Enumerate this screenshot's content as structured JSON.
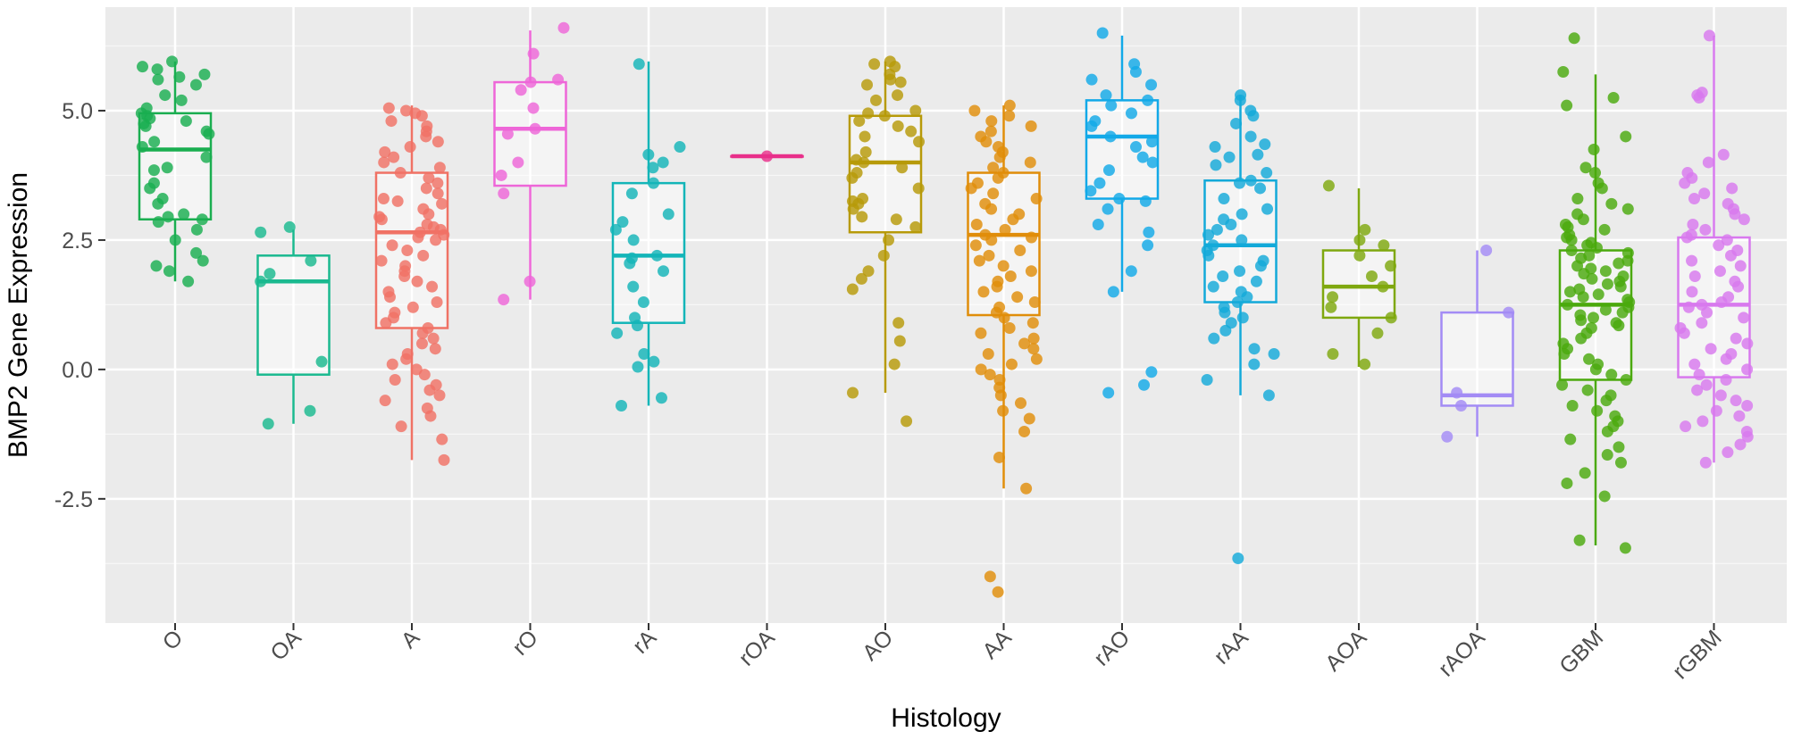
{
  "chart_data": {
    "type": "boxplot",
    "title": "",
    "xlabel": "Histology",
    "ylabel": "BMP2 Gene Expression",
    "ylim": [
      -4.9,
      7.0
    ],
    "yticks": [
      -2.5,
      0.0,
      2.5,
      5.0
    ],
    "ytick_labels": [
      "-2.5",
      "0.0",
      "2.5",
      "5.0"
    ],
    "grid": true,
    "legend": "none",
    "categories": [
      "O",
      "OA",
      "A",
      "rO",
      "rA",
      "rOA",
      "AO",
      "AA",
      "rAO",
      "rAA",
      "AOA",
      "rAOA",
      "GBM",
      "rGBM"
    ],
    "colors": [
      "#1aae50",
      "#1ab98f",
      "#f07265",
      "#ee66d8",
      "#13b5b8",
      "#e82f8a",
      "#b79a09",
      "#e08d0a",
      "#12a9e8",
      "#13a9d9",
      "#7fa80f",
      "#a38bf5",
      "#4ba90d",
      "#d879ee"
    ],
    "boxes": [
      {
        "name": "O",
        "min": 1.7,
        "q1": 2.9,
        "median": 4.25,
        "q3": 4.95,
        "max": 5.95,
        "points": [
          5.95,
          5.85,
          5.8,
          5.7,
          5.65,
          5.6,
          5.5,
          5.3,
          5.2,
          5.05,
          4.95,
          4.9,
          4.85,
          4.8,
          4.75,
          4.7,
          4.6,
          4.55,
          4.4,
          4.3,
          4.1,
          3.9,
          3.85,
          3.6,
          3.5,
          3.3,
          3.2,
          3.0,
          2.95,
          2.9,
          2.85,
          2.7,
          2.5,
          2.25,
          2.1,
          2.0,
          1.9,
          1.7
        ]
      },
      {
        "name": "OA",
        "min": -1.05,
        "q1": -0.1,
        "median": 1.7,
        "q3": 2.2,
        "max": 2.7,
        "points": [
          2.75,
          2.65,
          2.1,
          1.85,
          1.7,
          0.15,
          -0.8,
          -1.05
        ]
      },
      {
        "name": "A",
        "min": -1.75,
        "q1": 0.8,
        "median": 2.65,
        "q3": 3.8,
        "max": 5.1,
        "points": [
          5.05,
          5.0,
          4.95,
          4.9,
          4.8,
          4.7,
          4.6,
          4.5,
          4.4,
          4.3,
          4.2,
          4.1,
          4.0,
          3.9,
          3.8,
          3.7,
          3.6,
          3.5,
          3.4,
          3.3,
          3.25,
          3.2,
          3.1,
          3.0,
          2.95,
          2.9,
          2.8,
          2.75,
          2.7,
          2.65,
          2.6,
          2.55,
          2.5,
          2.4,
          2.3,
          2.2,
          2.1,
          2.0,
          1.9,
          1.8,
          1.7,
          1.6,
          1.5,
          1.4,
          1.3,
          1.2,
          1.1,
          1.0,
          0.9,
          0.8,
          0.7,
          0.6,
          0.5,
          0.4,
          0.3,
          0.2,
          0.1,
          0.0,
          -0.1,
          -0.2,
          -0.3,
          -0.4,
          -0.5,
          -0.6,
          -0.75,
          -0.9,
          -1.1,
          -1.35,
          -1.75
        ]
      },
      {
        "name": "rO",
        "min": 1.35,
        "q1": 3.55,
        "median": 4.65,
        "q3": 5.55,
        "max": 6.55,
        "points": [
          6.6,
          6.1,
          5.6,
          5.55,
          5.4,
          5.05,
          4.65,
          4.55,
          4.0,
          3.75,
          3.4,
          1.7,
          1.35
        ]
      },
      {
        "name": "rA",
        "min": -0.7,
        "q1": 0.9,
        "median": 2.2,
        "q3": 3.6,
        "max": 5.95,
        "points": [
          5.9,
          4.3,
          4.15,
          4.0,
          3.9,
          3.6,
          3.4,
          3.0,
          2.85,
          2.7,
          2.5,
          2.2,
          2.15,
          2.05,
          1.9,
          1.6,
          1.3,
          1.0,
          0.85,
          0.7,
          0.3,
          0.15,
          0.05,
          -0.55,
          -0.7
        ]
      },
      {
        "name": "rOA",
        "min": 4.12,
        "q1": 4.12,
        "median": 4.12,
        "q3": 4.12,
        "max": 4.12,
        "points": [
          4.12
        ]
      },
      {
        "name": "AO",
        "min": -0.45,
        "q1": 2.65,
        "median": 4.0,
        "q3": 4.9,
        "max": 5.95,
        "points": [
          5.95,
          5.9,
          5.85,
          5.7,
          5.6,
          5.55,
          5.5,
          5.3,
          5.2,
          5.0,
          4.95,
          4.9,
          4.8,
          4.7,
          4.6,
          4.5,
          4.4,
          4.2,
          4.05,
          4.0,
          3.9,
          3.8,
          3.7,
          3.5,
          3.3,
          3.25,
          3.2,
          3.1,
          2.95,
          2.9,
          2.75,
          2.5,
          2.2,
          1.9,
          1.75,
          1.55,
          0.9,
          0.55,
          0.1,
          -0.45,
          -1.0
        ]
      },
      {
        "name": "AA",
        "min": -2.3,
        "q1": 1.05,
        "median": 2.6,
        "q3": 3.8,
        "max": 5.1,
        "points": [
          5.1,
          5.0,
          4.9,
          4.8,
          4.7,
          4.6,
          4.5,
          4.4,
          4.3,
          4.2,
          4.1,
          4.0,
          3.9,
          3.8,
          3.7,
          3.6,
          3.5,
          3.4,
          3.3,
          3.2,
          3.1,
          3.0,
          2.9,
          2.8,
          2.7,
          2.6,
          2.55,
          2.5,
          2.4,
          2.3,
          2.2,
          2.1,
          2.0,
          1.9,
          1.8,
          1.7,
          1.6,
          1.5,
          1.4,
          1.3,
          1.2,
          1.1,
          1.0,
          0.9,
          0.8,
          0.7,
          0.6,
          0.5,
          0.4,
          0.3,
          0.2,
          0.1,
          0.0,
          -0.1,
          -0.2,
          -0.35,
          -0.5,
          -0.65,
          -0.8,
          -0.95,
          -1.2,
          -1.7,
          -2.3,
          -4.0,
          -4.3
        ]
      },
      {
        "name": "rAO",
        "min": 1.5,
        "q1": 3.3,
        "median": 4.5,
        "q3": 5.2,
        "max": 6.45,
        "points": [
          6.5,
          5.9,
          5.75,
          5.6,
          5.5,
          5.3,
          5.2,
          5.1,
          4.95,
          4.8,
          4.7,
          4.5,
          4.4,
          4.3,
          4.1,
          4.0,
          3.85,
          3.6,
          3.45,
          3.3,
          3.25,
          3.1,
          2.8,
          2.65,
          2.4,
          1.9,
          1.5,
          -0.05,
          -0.3,
          -0.45
        ]
      },
      {
        "name": "rAA",
        "min": -0.5,
        "q1": 1.3,
        "median": 2.4,
        "q3": 3.65,
        "max": 5.3,
        "points": [
          5.3,
          5.2,
          5.0,
          4.9,
          4.75,
          4.5,
          4.35,
          4.3,
          4.15,
          4.1,
          3.95,
          3.8,
          3.65,
          3.6,
          3.5,
          3.3,
          3.1,
          3.0,
          2.9,
          2.8,
          2.7,
          2.6,
          2.5,
          2.4,
          2.3,
          2.2,
          2.1,
          2.0,
          1.9,
          1.8,
          1.7,
          1.6,
          1.5,
          1.4,
          1.3,
          1.2,
          1.1,
          1.0,
          0.9,
          0.75,
          0.6,
          0.4,
          0.3,
          0.1,
          -0.2,
          -0.5,
          -3.65
        ]
      },
      {
        "name": "AOA",
        "min": 0.05,
        "q1": 1.0,
        "median": 1.6,
        "q3": 2.3,
        "max": 3.5,
        "points": [
          3.55,
          2.7,
          2.5,
          2.4,
          2.2,
          2.0,
          1.8,
          1.6,
          1.4,
          1.2,
          1.0,
          0.7,
          0.3,
          0.1
        ]
      },
      {
        "name": "rAOA",
        "min": -1.3,
        "q1": -0.7,
        "median": -0.5,
        "q3": 1.1,
        "max": 2.3,
        "points": [
          2.3,
          1.1,
          -0.45,
          -0.7,
          -1.3
        ]
      },
      {
        "name": "GBM",
        "min": -3.4,
        "q1": -0.2,
        "median": 1.25,
        "q3": 2.3,
        "max": 5.7,
        "points": [
          6.4,
          5.75,
          5.25,
          5.1,
          4.5,
          4.25,
          3.9,
          3.8,
          3.6,
          3.5,
          3.3,
          3.2,
          3.1,
          3.0,
          2.9,
          2.8,
          2.75,
          2.7,
          2.6,
          2.55,
          2.5,
          2.45,
          2.4,
          2.35,
          2.3,
          2.25,
          2.2,
          2.15,
          2.1,
          2.05,
          2.0,
          1.95,
          1.9,
          1.85,
          1.8,
          1.75,
          1.7,
          1.65,
          1.6,
          1.55,
          1.5,
          1.45,
          1.4,
          1.35,
          1.3,
          1.25,
          1.2,
          1.15,
          1.1,
          1.05,
          1.0,
          0.95,
          0.9,
          0.85,
          0.8,
          0.7,
          0.6,
          0.5,
          0.4,
          0.3,
          0.2,
          0.1,
          0.0,
          -0.1,
          -0.2,
          -0.3,
          -0.4,
          -0.5,
          -0.6,
          -0.7,
          -0.8,
          -0.9,
          -1.0,
          -1.1,
          -1.2,
          -1.35,
          -1.5,
          -1.65,
          -1.8,
          -2.0,
          -2.2,
          -2.45,
          -3.3,
          -3.45
        ]
      },
      {
        "name": "rGBM",
        "min": -1.8,
        "q1": -0.15,
        "median": 1.25,
        "q3": 2.55,
        "max": 6.45,
        "points": [
          6.45,
          5.35,
          5.3,
          5.25,
          4.15,
          4.0,
          3.8,
          3.7,
          3.6,
          3.5,
          3.4,
          3.3,
          3.2,
          3.1,
          3.0,
          2.9,
          2.8,
          2.7,
          2.6,
          2.55,
          2.5,
          2.4,
          2.3,
          2.2,
          2.1,
          2.0,
          1.9,
          1.8,
          1.7,
          1.6,
          1.5,
          1.4,
          1.3,
          1.25,
          1.2,
          1.1,
          1.0,
          0.9,
          0.8,
          0.7,
          0.6,
          0.5,
          0.4,
          0.3,
          0.2,
          0.1,
          0.0,
          -0.1,
          -0.2,
          -0.3,
          -0.4,
          -0.5,
          -0.6,
          -0.7,
          -0.8,
          -0.9,
          -1.0,
          -1.1,
          -1.2,
          -1.3,
          -1.45,
          -1.6,
          -1.8
        ]
      }
    ]
  }
}
